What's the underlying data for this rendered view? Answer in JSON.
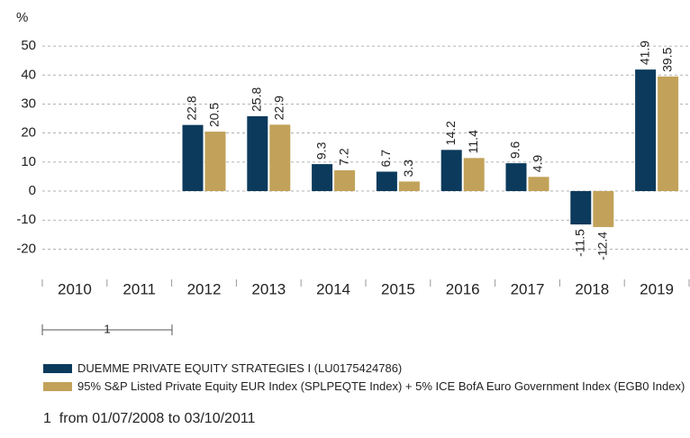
{
  "chart_data": {
    "type": "bar",
    "y_label": "%",
    "categories": [
      "2010",
      "2011",
      "2012",
      "2013",
      "2014",
      "2015",
      "2016",
      "2017",
      "2018",
      "2019"
    ],
    "series": [
      {
        "name": "DUEMME PRIVATE EQUITY STRATEGIES I (LU0175424786)",
        "color": "#0b3a5c",
        "values": [
          null,
          null,
          22.8,
          25.8,
          9.3,
          6.7,
          14.2,
          9.6,
          -11.5,
          41.9
        ]
      },
      {
        "name": "95% S&P Listed Private Equity EUR Index (SPLPEQTE Index) + 5% ICE BofA Euro Government Index (EGB0 Index)",
        "color": "#c2a25a",
        "values": [
          null,
          null,
          20.5,
          22.9,
          7.2,
          3.3,
          11.4,
          4.9,
          -12.4,
          39.5
        ]
      }
    ],
    "ylim": [
      -25,
      55
    ],
    "yticks": [
      -20,
      -10,
      0,
      10,
      20,
      30,
      40,
      50
    ],
    "grid": true,
    "footnote": {
      "marker": "1",
      "text": "from 01/07/2008 to 03/10/2011"
    }
  }
}
